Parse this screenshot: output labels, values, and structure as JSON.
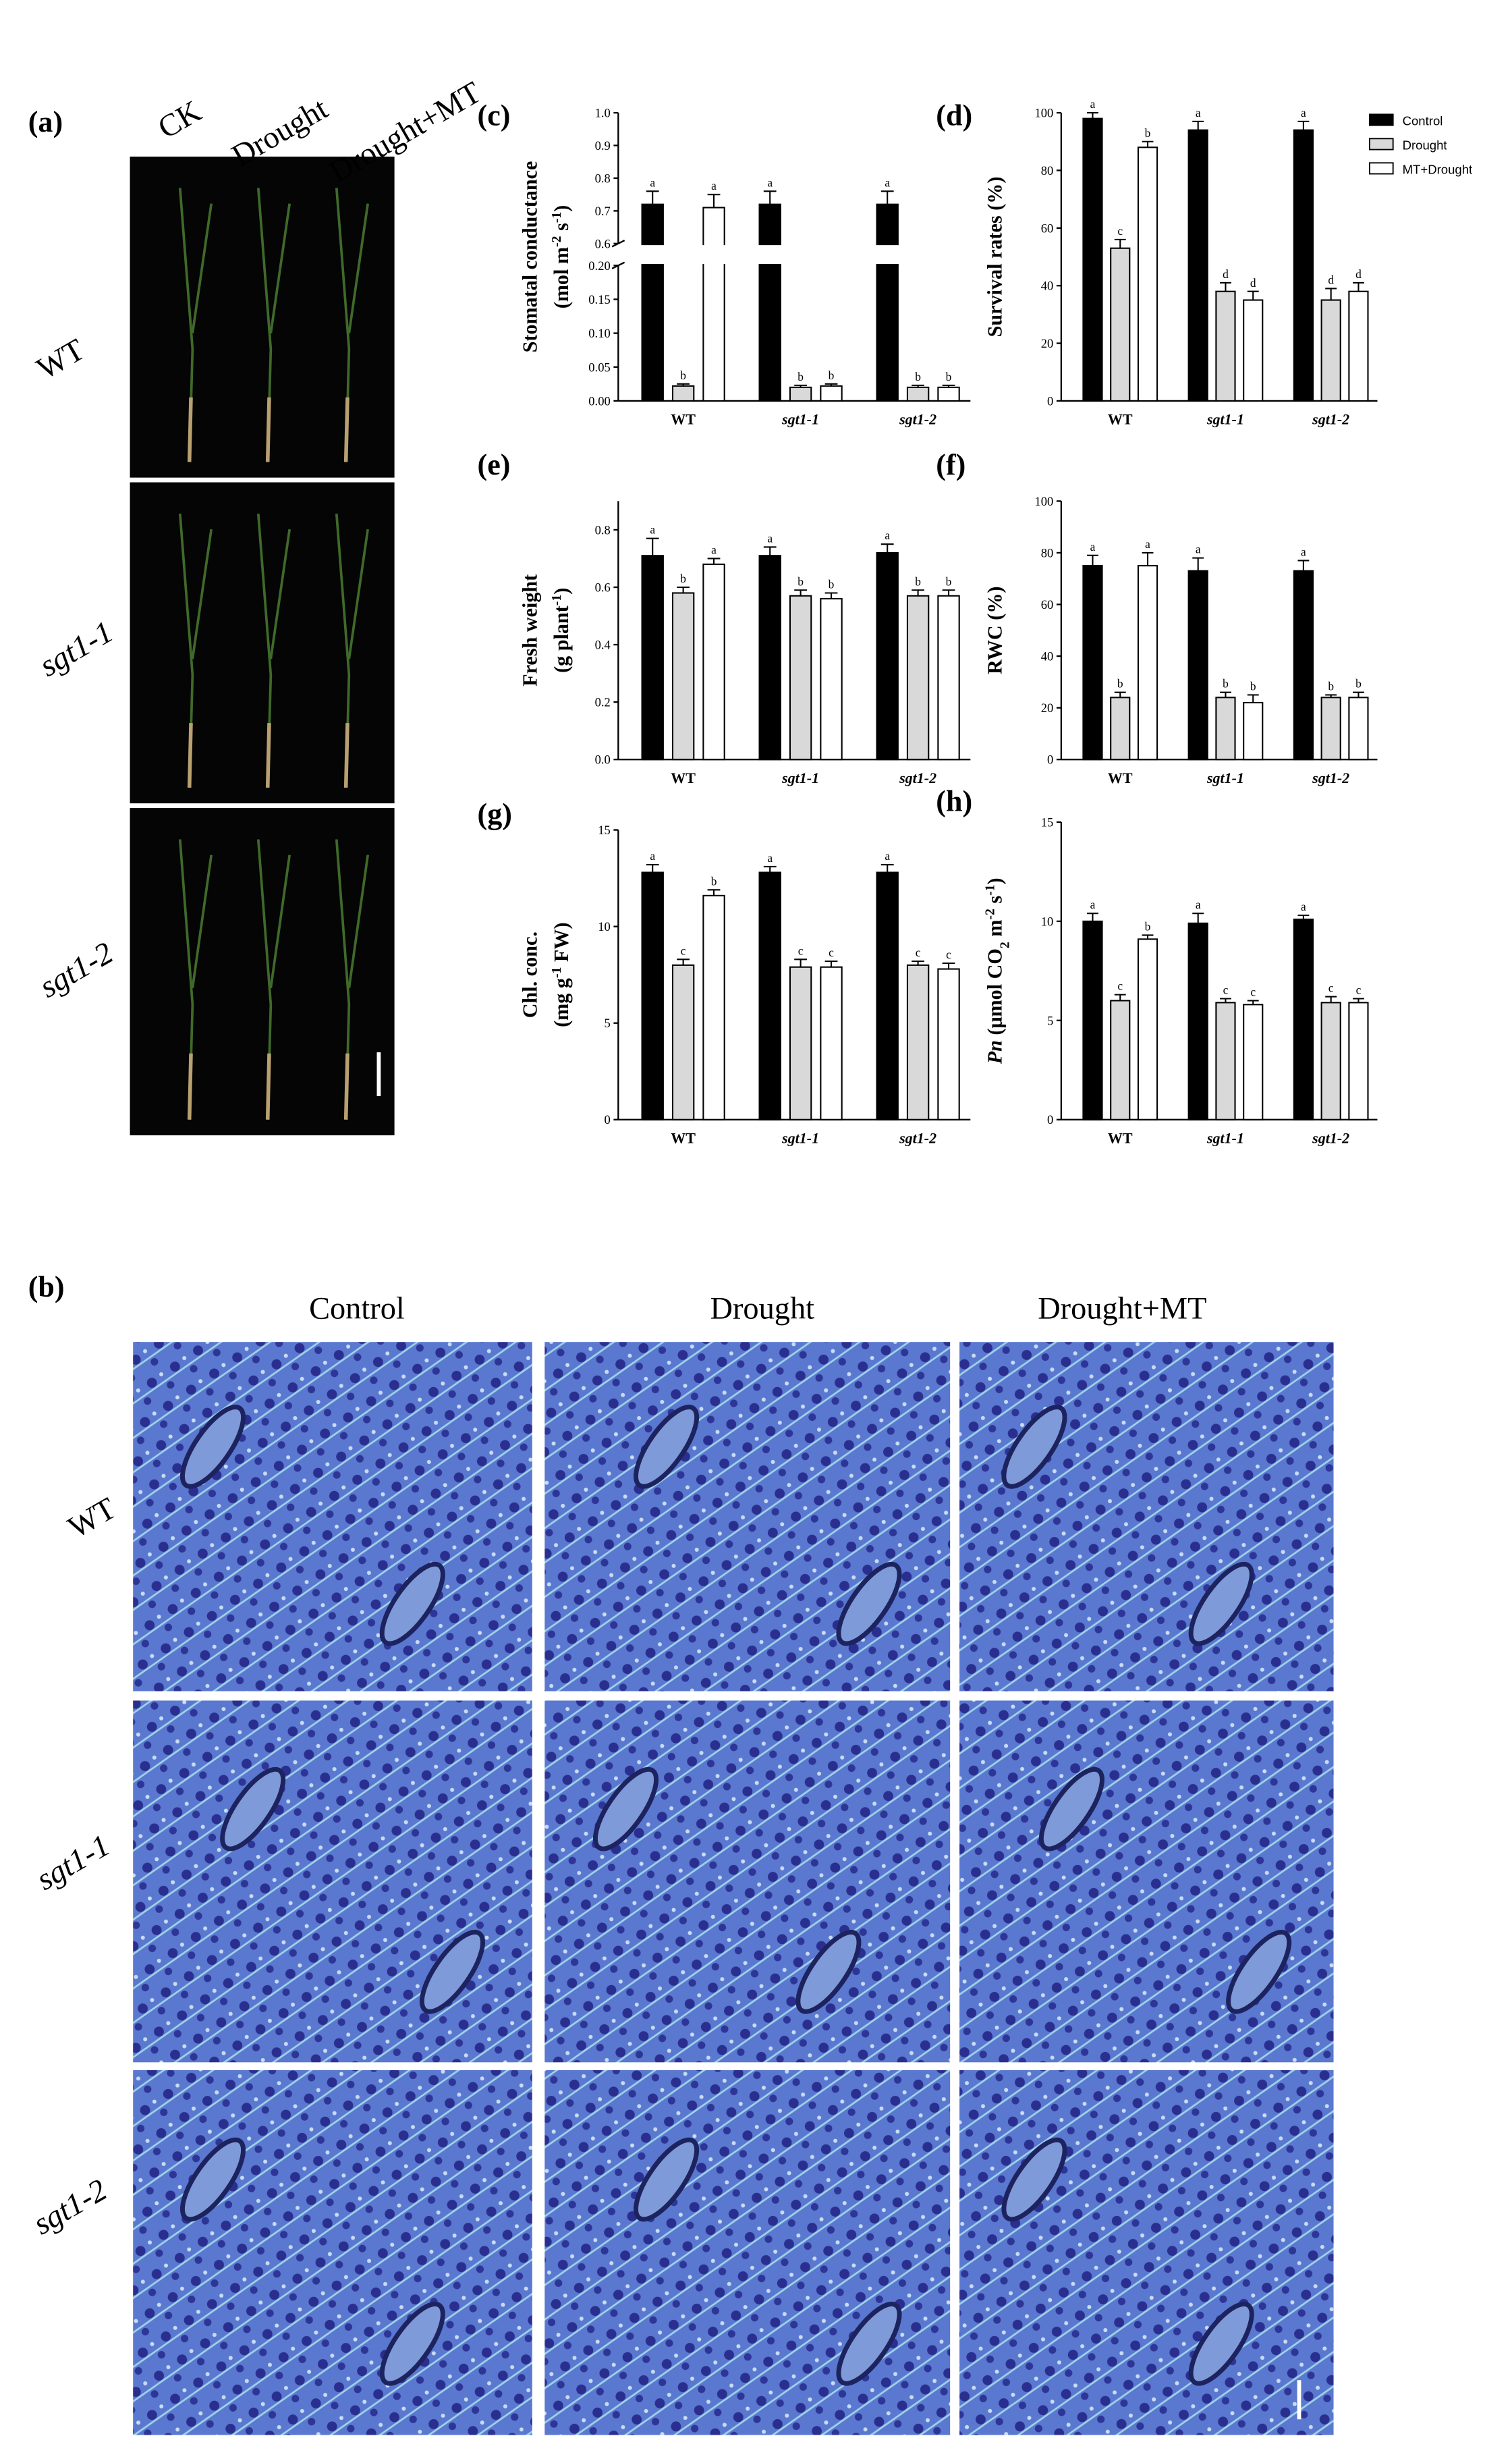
{
  "panel_a": {
    "label": "(a)",
    "columns": [
      "CK",
      "Drought",
      "Drought+MT"
    ],
    "rows": [
      "WT",
      "sgt1-1",
      "sgt1-2"
    ]
  },
  "panel_b": {
    "label": "(b)",
    "columns": [
      "Control",
      "Drought",
      "Drought+MT"
    ],
    "rows": [
      "WT",
      "sgt1-1",
      "sgt1-2"
    ]
  },
  "chart_data": [
    {
      "type": "bar",
      "label": "(c)",
      "ylabel": [
        [
          {
            "text": "Stomatal conductance"
          }
        ],
        [
          {
            "text": "(mol m"
          },
          {
            "text": "-2",
            "style": "sup"
          },
          {
            "text": " s"
          },
          {
            "text": "-1",
            "style": "sup"
          },
          {
            "text": ")"
          }
        ]
      ],
      "categories": [
        "WT",
        "sgt1-1",
        "sgt1-2"
      ],
      "ylim": [
        0,
        1.0
      ],
      "axis_break": [
        0.2,
        0.6
      ],
      "yticks": [
        {
          "value": 0,
          "label": "0.00"
        },
        0.05,
        {
          "value": 0.1,
          "label": "0.10"
        },
        0.15,
        {
          "value": 0.2,
          "label": "0.20"
        },
        0.6,
        0.7,
        0.8,
        0.9,
        {
          "value": 1,
          "label": "1.0"
        }
      ],
      "series": [
        {
          "color": "#000000",
          "values": [
            0.72,
            0.72,
            0.72
          ],
          "errors": [
            0.04,
            0.04,
            0.04
          ],
          "letters": [
            "a",
            "a",
            "a"
          ]
        },
        {
          "color": "#d9d9d9",
          "values": [
            0.022,
            0.02,
            0.02
          ],
          "errors": [
            0.003,
            0.003,
            0.003
          ],
          "letters": [
            "b",
            "b",
            "b"
          ]
        },
        {
          "color": "#ffffff",
          "values": [
            0.71,
            0.022,
            0.02
          ],
          "errors": [
            0.04,
            0.003,
            0.003
          ],
          "letters": [
            "a",
            "b",
            "b"
          ]
        }
      ]
    },
    {
      "type": "bar",
      "label": "(d)",
      "ylabel": [
        [
          {
            "text": "Survival rates (%)"
          }
        ]
      ],
      "categories": [
        "WT",
        "sgt1-1",
        "sgt1-2"
      ],
      "ylim": [
        0,
        100
      ],
      "yticks": [
        0,
        20,
        40,
        60,
        80,
        100
      ],
      "legend": "top-right",
      "series": [
        {
          "name": "Control",
          "color": "#000000",
          "values": [
            98,
            94,
            94
          ],
          "errors": [
            2,
            3,
            3
          ],
          "letters": [
            "a",
            "a",
            "a"
          ]
        },
        {
          "name": "Drought",
          "color": "#d9d9d9",
          "values": [
            53,
            38,
            35
          ],
          "errors": [
            3,
            3,
            4
          ],
          "letters": [
            "c",
            "d",
            "d"
          ]
        },
        {
          "name": "MT+Drought",
          "color": "#ffffff",
          "values": [
            88,
            35,
            38
          ],
          "errors": [
            2,
            3,
            3
          ],
          "letters": [
            "b",
            "d",
            "d"
          ]
        }
      ]
    },
    {
      "type": "bar",
      "label": "(e)",
      "ylabel": [
        [
          {
            "text": "Fresh weight"
          }
        ],
        [
          {
            "text": "(g plant"
          },
          {
            "text": "-1",
            "style": "sup"
          },
          {
            "text": ")"
          }
        ]
      ],
      "categories": [
        "WT",
        "sgt1-1",
        "sgt1-2"
      ],
      "ylim": [
        0,
        0.9
      ],
      "yticks": [
        {
          "value": 0,
          "label": "0.0"
        },
        0.2,
        0.4,
        0.6,
        0.8
      ],
      "series": [
        {
          "color": "#000000",
          "values": [
            0.71,
            0.71,
            0.72
          ],
          "errors": [
            0.06,
            0.03,
            0.03
          ],
          "letters": [
            "a",
            "a",
            "a"
          ]
        },
        {
          "color": "#d9d9d9",
          "values": [
            0.58,
            0.57,
            0.57
          ],
          "errors": [
            0.02,
            0.02,
            0.02
          ],
          "letters": [
            "b",
            "b",
            "b"
          ]
        },
        {
          "color": "#ffffff",
          "values": [
            0.68,
            0.56,
            0.57
          ],
          "errors": [
            0.02,
            0.02,
            0.02
          ],
          "letters": [
            "a",
            "b",
            "b"
          ]
        }
      ]
    },
    {
      "type": "bar",
      "label": "(f)",
      "ylabel": [
        [
          {
            "text": "RWC (%)"
          }
        ]
      ],
      "categories": [
        "WT",
        "sgt1-1",
        "sgt1-2"
      ],
      "ylim": [
        0,
        100
      ],
      "yticks": [
        0,
        20,
        40,
        60,
        80,
        100
      ],
      "series": [
        {
          "color": "#000000",
          "values": [
            75,
            73,
            73
          ],
          "errors": [
            4,
            5,
            4
          ],
          "letters": [
            "a",
            "a",
            "a"
          ]
        },
        {
          "color": "#d9d9d9",
          "values": [
            24,
            24,
            24
          ],
          "errors": [
            2,
            2,
            1
          ],
          "letters": [
            "b",
            "b",
            "b"
          ]
        },
        {
          "color": "#ffffff",
          "values": [
            75,
            22,
            24
          ],
          "errors": [
            5,
            3,
            2
          ],
          "letters": [
            "a",
            "b",
            "b"
          ]
        }
      ]
    },
    {
      "type": "bar",
      "label": "(g)",
      "ylabel": [
        [
          {
            "text": "Chl. conc."
          }
        ],
        [
          {
            "text": "(mg g"
          },
          {
            "text": "-1",
            "style": "sup"
          },
          {
            "text": " FW)"
          }
        ]
      ],
      "categories": [
        "WT",
        "sgt1-1",
        "sgt1-2"
      ],
      "ylim": [
        0,
        15
      ],
      "yticks": [
        0,
        5,
        10,
        15
      ],
      "series": [
        {
          "color": "#000000",
          "values": [
            12.8,
            12.8,
            12.8
          ],
          "errors": [
            0.4,
            0.3,
            0.4
          ],
          "letters": [
            "a",
            "a",
            "a"
          ]
        },
        {
          "color": "#d9d9d9",
          "values": [
            8.0,
            7.9,
            8.0
          ],
          "errors": [
            0.3,
            0.4,
            0.2
          ],
          "letters": [
            "c",
            "c",
            "c"
          ]
        },
        {
          "color": "#ffffff",
          "values": [
            11.6,
            7.9,
            7.8
          ],
          "errors": [
            0.3,
            0.3,
            0.3
          ],
          "letters": [
            "b",
            "c",
            "c"
          ]
        }
      ]
    },
    {
      "type": "bar",
      "label": "(h)",
      "ylabel": [
        [
          {
            "text": "Pn",
            "style": "italic"
          },
          {
            "text": " (μmol CO"
          },
          {
            "text": "2",
            "style": "sub"
          },
          {
            "text": " m"
          },
          {
            "text": "-2",
            "style": "sup"
          },
          {
            "text": " s"
          },
          {
            "text": "-1",
            "style": "sup"
          },
          {
            "text": ")"
          }
        ]
      ],
      "categories": [
        "WT",
        "sgt1-1",
        "sgt1-2"
      ],
      "ylim": [
        0,
        15
      ],
      "yticks": [
        0,
        5,
        10,
        15
      ],
      "series": [
        {
          "color": "#000000",
          "values": [
            10.0,
            9.9,
            10.1
          ],
          "errors": [
            0.4,
            0.5,
            0.2
          ],
          "letters": [
            "a",
            "a",
            "a"
          ]
        },
        {
          "color": "#d9d9d9",
          "values": [
            6.0,
            5.9,
            5.9
          ],
          "errors": [
            0.3,
            0.2,
            0.3
          ],
          "letters": [
            "c",
            "c",
            "c"
          ]
        },
        {
          "color": "#ffffff",
          "values": [
            9.1,
            5.8,
            5.9
          ],
          "errors": [
            0.2,
            0.2,
            0.2
          ],
          "letters": [
            "b",
            "c",
            "c"
          ]
        }
      ]
    }
  ]
}
